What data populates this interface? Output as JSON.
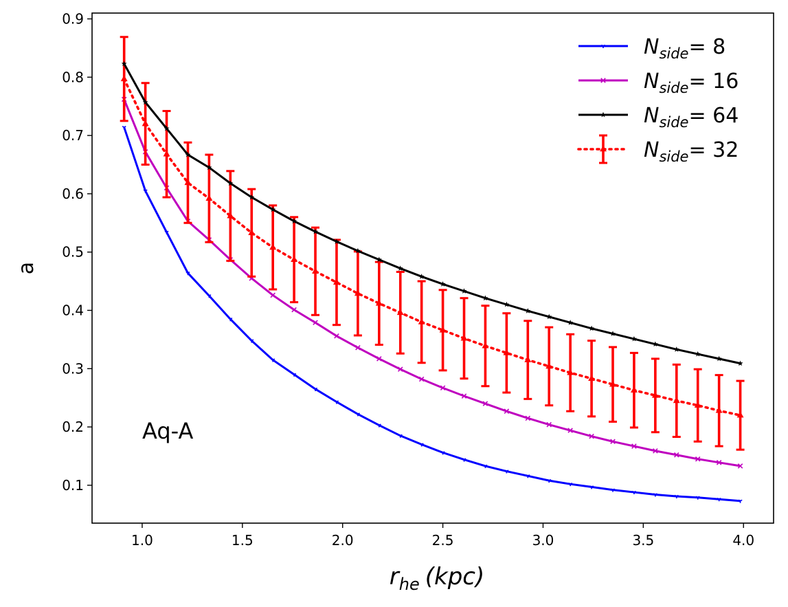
{
  "chart_data": {
    "type": "line",
    "title": "",
    "xlabel_main": "r",
    "xlabel_sub": "he",
    "xlabel_unit": "(kpc)",
    "ylabel": "a",
    "annotation": "Aq-A",
    "xlim": [
      0.75,
      4.15
    ],
    "ylim": [
      0.035,
      0.91
    ],
    "xticks": [
      1.0,
      1.5,
      2.0,
      2.5,
      3.0,
      3.5,
      4.0
    ],
    "xtick_labels": [
      "1.0",
      "1.5",
      "2.0",
      "2.5",
      "3.0",
      "3.5",
      "4.0"
    ],
    "yticks": [
      0.1,
      0.2,
      0.3,
      0.4,
      0.5,
      0.6,
      0.7,
      0.8,
      0.9
    ],
    "ytick_labels": [
      "0.1",
      "0.2",
      "0.3",
      "0.4",
      "0.5",
      "0.6",
      "0.7",
      "0.8",
      "0.9"
    ],
    "legend_position": "top-right",
    "x": [
      0.91,
      1.016,
      1.122,
      1.228,
      1.334,
      1.44,
      1.546,
      1.652,
      1.758,
      1.864,
      1.97,
      2.076,
      2.182,
      2.288,
      2.394,
      2.5,
      2.606,
      2.712,
      2.818,
      2.924,
      3.03,
      3.136,
      3.242,
      3.348,
      3.454,
      3.56,
      3.666,
      3.772,
      3.878,
      3.984
    ],
    "series": [
      {
        "name": "N",
        "name_sub": "side",
        "name_value": "= 8",
        "color": "#0000ff",
        "style": "solid",
        "marker": "tri",
        "values": [
          0.714,
          0.605,
          0.534,
          0.464,
          0.425,
          0.385,
          0.348,
          0.315,
          0.29,
          0.265,
          0.243,
          0.222,
          0.203,
          0.185,
          0.17,
          0.156,
          0.144,
          0.133,
          0.124,
          0.116,
          0.108,
          0.102,
          0.097,
          0.092,
          0.088,
          0.084,
          0.081,
          0.079,
          0.076,
          0.073
        ]
      },
      {
        "name": "N",
        "name_sub": "side",
        "name_value": "= 16",
        "color": "#bf00bf",
        "style": "solid",
        "marker": "x",
        "values": [
          0.762,
          0.672,
          0.61,
          0.553,
          0.521,
          0.487,
          0.455,
          0.426,
          0.401,
          0.379,
          0.356,
          0.336,
          0.317,
          0.299,
          0.282,
          0.267,
          0.253,
          0.24,
          0.227,
          0.215,
          0.204,
          0.194,
          0.184,
          0.175,
          0.167,
          0.159,
          0.152,
          0.145,
          0.139,
          0.133
        ]
      },
      {
        "name": "N",
        "name_sub": "side",
        "name_value": "= 64",
        "color": "#000000",
        "style": "solid",
        "marker": "star",
        "values": [
          0.823,
          0.757,
          0.712,
          0.667,
          0.645,
          0.618,
          0.594,
          0.573,
          0.553,
          0.535,
          0.518,
          0.502,
          0.487,
          0.472,
          0.458,
          0.445,
          0.433,
          0.421,
          0.41,
          0.399,
          0.389,
          0.379,
          0.369,
          0.36,
          0.351,
          0.342,
          0.333,
          0.325,
          0.317,
          0.309
        ]
      },
      {
        "name": "N",
        "name_sub": "side",
        "name_value": "= 32",
        "color": "#ff0000",
        "style": "dotted",
        "marker": "triangle-up",
        "values": [
          0.797,
          0.72,
          0.668,
          0.619,
          0.592,
          0.562,
          0.533,
          0.508,
          0.487,
          0.467,
          0.448,
          0.429,
          0.412,
          0.396,
          0.38,
          0.366,
          0.352,
          0.339,
          0.327,
          0.315,
          0.304,
          0.293,
          0.283,
          0.273,
          0.263,
          0.254,
          0.245,
          0.237,
          0.228,
          0.22
        ],
        "errors": [
          0.072,
          0.07,
          0.074,
          0.069,
          0.075,
          0.077,
          0.075,
          0.072,
          0.073,
          0.075,
          0.073,
          0.072,
          0.071,
          0.07,
          0.07,
          0.069,
          0.069,
          0.069,
          0.068,
          0.067,
          0.067,
          0.066,
          0.065,
          0.064,
          0.064,
          0.063,
          0.062,
          0.062,
          0.061,
          0.059
        ]
      }
    ]
  }
}
